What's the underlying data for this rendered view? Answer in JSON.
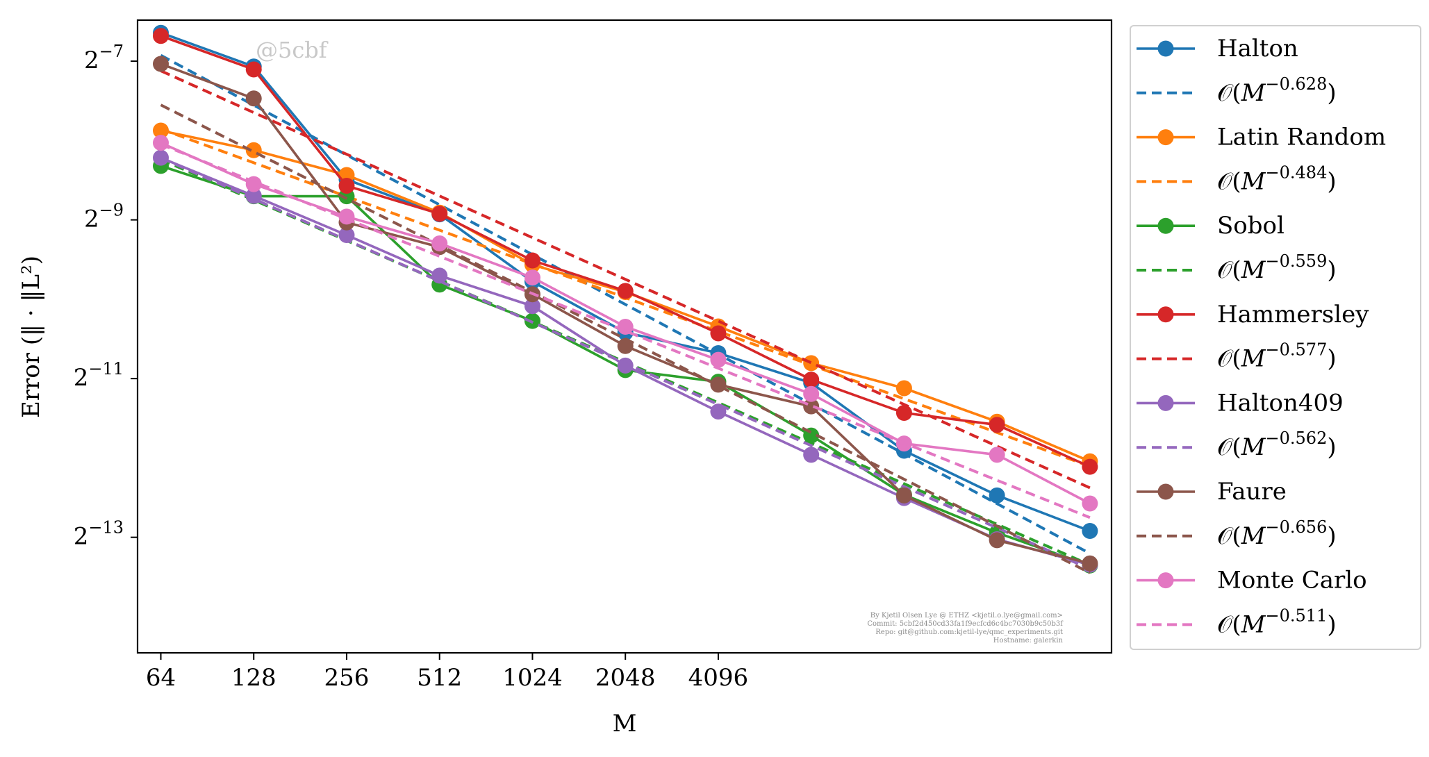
{
  "chart_data": {
    "type": "line",
    "xlabel": "M",
    "ylabel": "Error (‖ · ‖L²)",
    "x_scale": "log2",
    "y_scale": "log2",
    "xlim": [
      53.8,
      77000
    ],
    "ylim": [
      4.45e-05,
      0.01118
    ],
    "x": [
      64,
      128,
      256,
      512,
      1024,
      2048,
      4096,
      8192,
      16384,
      32768,
      65536
    ],
    "x_tick_values": [
      64,
      128,
      256,
      512,
      1024,
      2048,
      4096
    ],
    "x_tick_labels": [
      "64",
      "128",
      "256",
      "512",
      "1024",
      "2048",
      "4096"
    ],
    "y_ticks": [
      {
        "base": "2",
        "exponent": "−7",
        "value": 0.0078125
      },
      {
        "base": "2",
        "exponent": "−9",
        "value": 0.001953125
      },
      {
        "base": "2",
        "exponent": "−11",
        "value": 0.00048828125
      },
      {
        "base": "2",
        "exponent": "−13",
        "value": 0.0001220703125
      }
    ],
    "grid": false,
    "legend_position": "outside right",
    "series": [
      {
        "name": "Halton",
        "color": "#1f77b4",
        "style": "solid-marker",
        "values": [
          0.01001,
          0.00746,
          0.00278,
          0.00205,
          0.00114,
          0.00073,
          0.00061,
          0.00047,
          0.00026,
          0.000176,
          0.000129
        ]
      },
      {
        "name": "O(M^{-0.628})",
        "prefix": "𝒪(",
        "base": "M",
        "exponent": "−0.628",
        "suffix": ")",
        "color": "#1f77b4",
        "style": "dashed",
        "x_range": [
          64,
          65536
        ],
        "y_range": [
          0.00822,
          0.000106
        ]
      },
      {
        "name": "Latin Random",
        "color": "#ff7f0e",
        "style": "solid-marker",
        "values": [
          0.00426,
          0.00359,
          0.00289,
          0.00208,
          0.00132,
          0.00104,
          0.00077,
          0.000559,
          0.000449,
          0.000335,
          0.000237
        ]
      },
      {
        "name": "O(M^{-0.484})",
        "prefix": "𝒪(",
        "base": "M",
        "exponent": "−0.484",
        "suffix": ")",
        "color": "#ff7f0e",
        "style": "dashed",
        "x_range": [
          64,
          65536
        ],
        "y_range": [
          0.00432,
          0.000227
        ]
      },
      {
        "name": "Sobol",
        "color": "#2ca02c",
        "style": "solid-marker",
        "values": [
          0.00313,
          0.0024,
          0.0024,
          0.00111,
          0.000808,
          0.000526,
          0.000475,
          0.000297,
          0.000177,
          0.000127,
          9.54e-05
        ]
      },
      {
        "name": "O(M^{-0.559})",
        "prefix": "𝒪(",
        "base": "M",
        "exponent": "−0.559",
        "suffix": ")",
        "color": "#2ca02c",
        "style": "dashed",
        "x_range": [
          64,
          65536
        ],
        "y_range": [
          0.00331,
          9.6e-05
        ]
      },
      {
        "name": "Hammersley",
        "color": "#d62728",
        "style": "solid-marker",
        "values": [
          0.00974,
          0.00727,
          0.00263,
          0.00206,
          0.00137,
          0.00105,
          0.000725,
          0.000484,
          0.000362,
          0.000326,
          0.000226
        ]
      },
      {
        "name": "O(M^{-0.577})",
        "prefix": "𝒪(",
        "base": "M",
        "exponent": "−0.577",
        "suffix": ")",
        "color": "#d62728",
        "style": "dashed",
        "x_range": [
          64,
          65536
        ],
        "y_range": [
          0.00718,
          0.000188
        ]
      },
      {
        "name": "Halton409",
        "color": "#9467bd",
        "style": "solid-marker",
        "values": [
          0.00336,
          0.00241,
          0.00171,
          0.0012,
          0.00092,
          0.000547,
          0.000366,
          0.000251,
          0.000172,
          0.00012,
          9.6e-05
        ]
      },
      {
        "name": "O(M^{-0.562})",
        "prefix": "𝒪(",
        "base": "M",
        "exponent": "−0.562",
        "suffix": ")",
        "color": "#9467bd",
        "style": "dashed",
        "x_range": [
          64,
          65536
        ],
        "y_range": [
          0.00336,
          9.26e-05
        ]
      },
      {
        "name": "Faure",
        "color": "#8c564b",
        "style": "solid-marker",
        "values": [
          0.00763,
          0.00564,
          0.00191,
          0.00154,
          0.00102,
          0.000649,
          0.000463,
          0.000383,
          0.000176,
          0.000119,
          9.72e-05
        ]
      },
      {
        "name": "O(M^{-0.656})",
        "prefix": "𝒪(",
        "base": "M",
        "exponent": "−0.656",
        "suffix": ")",
        "color": "#8c564b",
        "style": "dashed",
        "x_range": [
          64,
          65536
        ],
        "y_range": [
          0.00533,
          8.95e-05
        ]
      },
      {
        "name": "Monte Carlo",
        "color": "#e377c2",
        "style": "solid-marker",
        "values": [
          0.00383,
          0.00267,
          0.00201,
          0.00159,
          0.00118,
          0.000768,
          0.000575,
          0.000427,
          0.000277,
          0.000251,
          0.000164
        ]
      },
      {
        "name": "O(M^{-0.511})",
        "prefix": "𝒪(",
        "base": "M",
        "exponent": "−0.511",
        "suffix": ")",
        "color": "#e377c2",
        "style": "dashed",
        "x_range": [
          64,
          65536
        ],
        "y_range": [
          0.00378,
          0.000145
        ]
      }
    ]
  },
  "watermark": "@5cbf",
  "credits": [
    "By Kjetil Olsen Lye @ ETHZ <kjetil.o.lye@gmail.com>",
    "Commit: 5cbf2d450cd33fa1f9ecfcd6c4bc7030b9c50b3f",
    "Repo: git@github.com:kjetil-lye/qmc_experiments.git",
    "Hostname: galerkin"
  ]
}
